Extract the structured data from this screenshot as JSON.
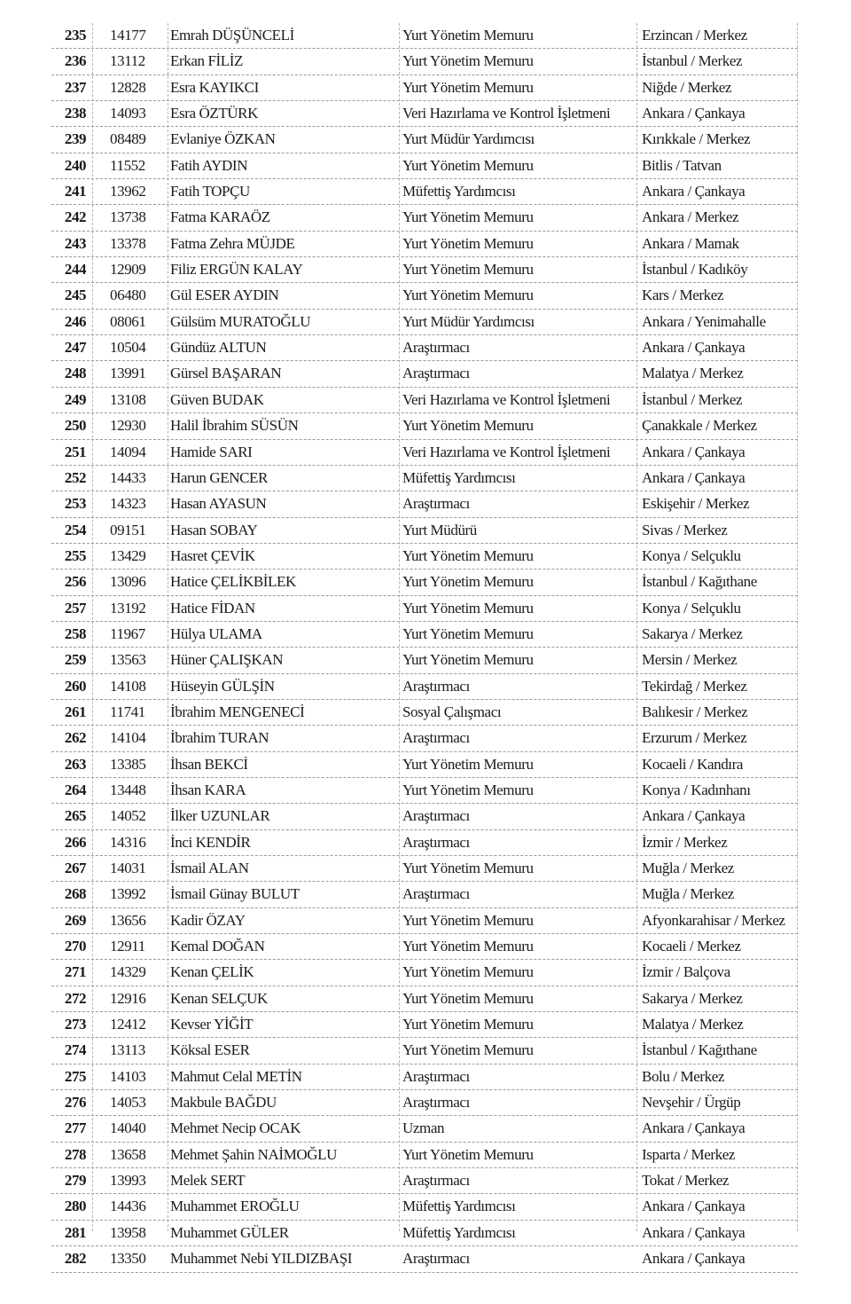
{
  "rows": [
    [
      "235",
      "14177",
      "Emrah DÜŞÜNCELİ",
      "Yurt Yönetim Memuru",
      "Erzincan / Merkez"
    ],
    [
      "236",
      "13112",
      "Erkan FİLİZ",
      "Yurt Yönetim Memuru",
      "İstanbul / Merkez"
    ],
    [
      "237",
      "12828",
      "Esra KAYIKCI",
      "Yurt Yönetim Memuru",
      "Niğde / Merkez"
    ],
    [
      "238",
      "14093",
      "Esra ÖZTÜRK",
      "Veri Hazırlama ve Kontrol İşletmeni",
      "Ankara / Çankaya"
    ],
    [
      "239",
      "08489",
      "Evlaniye ÖZKAN",
      "Yurt Müdür Yardımcısı",
      "Kırıkkale / Merkez"
    ],
    [
      "240",
      "11552",
      "Fatih AYDIN",
      "Yurt Yönetim Memuru",
      "Bitlis / Tatvan"
    ],
    [
      "241",
      "13962",
      "Fatih TOPÇU",
      "Müfettiş Yardımcısı",
      "Ankara / Çankaya"
    ],
    [
      "242",
      "13738",
      "Fatma KARAÖZ",
      "Yurt Yönetim Memuru",
      "Ankara / Merkez"
    ],
    [
      "243",
      "13378",
      "Fatma Zehra MÜJDE",
      "Yurt Yönetim Memuru",
      "Ankara / Mamak"
    ],
    [
      "244",
      "12909",
      "Filiz ERGÜN KALAY",
      "Yurt Yönetim Memuru",
      "İstanbul / Kadıköy"
    ],
    [
      "245",
      "06480",
      "Gül ESER AYDIN",
      "Yurt Yönetim Memuru",
      "Kars / Merkez"
    ],
    [
      "246",
      "08061",
      "Gülsüm MURATOĞLU",
      "Yurt Müdür Yardımcısı",
      "Ankara / Yenimahalle"
    ],
    [
      "247",
      "10504",
      "Gündüz ALTUN",
      "Araştırmacı",
      "Ankara / Çankaya"
    ],
    [
      "248",
      "13991",
      "Gürsel BAŞARAN",
      "Araştırmacı",
      "Malatya / Merkez"
    ],
    [
      "249",
      "13108",
      "Güven BUDAK",
      "Veri Hazırlama ve Kontrol İşletmeni",
      "İstanbul / Merkez"
    ],
    [
      "250",
      "12930",
      "Halil İbrahim SÜSÜN",
      "Yurt Yönetim Memuru",
      "Çanakkale / Merkez"
    ],
    [
      "251",
      "14094",
      "Hamide SARI",
      "Veri Hazırlama ve Kontrol İşletmeni",
      "Ankara / Çankaya"
    ],
    [
      "252",
      "14433",
      "Harun GENCER",
      "Müfettiş Yardımcısı",
      "Ankara / Çankaya"
    ],
    [
      "253",
      "14323",
      "Hasan AYASUN",
      "Araştırmacı",
      "Eskişehir / Merkez"
    ],
    [
      "254",
      "09151",
      "Hasan SOBAY",
      "Yurt Müdürü",
      "Sivas / Merkez"
    ],
    [
      "255",
      "13429",
      "Hasret ÇEVİK",
      "Yurt Yönetim Memuru",
      "Konya / Selçuklu"
    ],
    [
      "256",
      "13096",
      "Hatice ÇELİKBİLEK",
      "Yurt Yönetim Memuru",
      "İstanbul / Kağıthane"
    ],
    [
      "257",
      "13192",
      "Hatice FİDAN",
      "Yurt Yönetim Memuru",
      "Konya / Selçuklu"
    ],
    [
      "258",
      "11967",
      "Hülya ULAMA",
      "Yurt Yönetim Memuru",
      "Sakarya / Merkez"
    ],
    [
      "259",
      "13563",
      "Hüner ÇALIŞKAN",
      "Yurt Yönetim Memuru",
      "Mersin / Merkez"
    ],
    [
      "260",
      "14108",
      "Hüseyin GÜLŞİN",
      "Araştırmacı",
      "Tekirdağ / Merkez"
    ],
    [
      "261",
      "11741",
      "İbrahim MENGENECİ",
      "Sosyal Çalışmacı",
      "Balıkesir / Merkez"
    ],
    [
      "262",
      "14104",
      "İbrahim TURAN",
      "Araştırmacı",
      "Erzurum / Merkez"
    ],
    [
      "263",
      "13385",
      "İhsan BEKCİ",
      "Yurt Yönetim Memuru",
      "Kocaeli / Kandıra"
    ],
    [
      "264",
      "13448",
      "İhsan KARA",
      "Yurt Yönetim Memuru",
      "Konya / Kadınhanı"
    ],
    [
      "265",
      "14052",
      "İlker UZUNLAR",
      "Araştırmacı",
      "Ankara / Çankaya"
    ],
    [
      "266",
      "14316",
      "İnci KENDİR",
      "Araştırmacı",
      "İzmir / Merkez"
    ],
    [
      "267",
      "14031",
      "İsmail ALAN",
      "Yurt Yönetim Memuru",
      "Muğla / Merkez"
    ],
    [
      "268",
      "13992",
      "İsmail Günay BULUT",
      "Araştırmacı",
      "Muğla / Merkez"
    ],
    [
      "269",
      "13656",
      "Kadir ÖZAY",
      "Yurt Yönetim Memuru",
      "Afyonkarahisar / Merkez"
    ],
    [
      "270",
      "12911",
      "Kemal DOĞAN",
      "Yurt Yönetim Memuru",
      "Kocaeli / Merkez"
    ],
    [
      "271",
      "14329",
      "Kenan ÇELİK",
      "Yurt Yönetim Memuru",
      "İzmir / Balçova"
    ],
    [
      "272",
      "12916",
      "Kenan SELÇUK",
      "Yurt Yönetim Memuru",
      "Sakarya / Merkez"
    ],
    [
      "273",
      "12412",
      "Kevser YİĞİT",
      "Yurt Yönetim Memuru",
      "Malatya / Merkez"
    ],
    [
      "274",
      "13113",
      "Köksal ESER",
      "Yurt Yönetim Memuru",
      "İstanbul / Kağıthane"
    ],
    [
      "275",
      "14103",
      "Mahmut Celal METİN",
      "Araştırmacı",
      "Bolu / Merkez"
    ],
    [
      "276",
      "14053",
      "Makbule BAĞDU",
      "Araştırmacı",
      "Nevşehir / Ürgüp"
    ],
    [
      "277",
      "14040",
      "Mehmet Necip OCAK",
      "Uzman",
      "Ankara / Çankaya"
    ],
    [
      "278",
      "13658",
      "Mehmet Şahin NAİMOĞLU",
      "Yurt Yönetim Memuru",
      "Isparta / Merkez"
    ],
    [
      "279",
      "13993",
      "Melek SERT",
      "Araştırmacı",
      "Tokat / Merkez"
    ],
    [
      "280",
      "14436",
      "Muhammet EROĞLU",
      "Müfettiş Yardımcısı",
      "Ankara / Çankaya"
    ],
    [
      "281",
      "13958",
      "Muhammet GÜLER",
      "Müfettiş Yardımcısı",
      "Ankara / Çankaya"
    ],
    [
      "282",
      "13350",
      "Muhammet Nebi YILDIZBAŞI",
      "Araştırmacı",
      "Ankara / Çankaya"
    ]
  ]
}
